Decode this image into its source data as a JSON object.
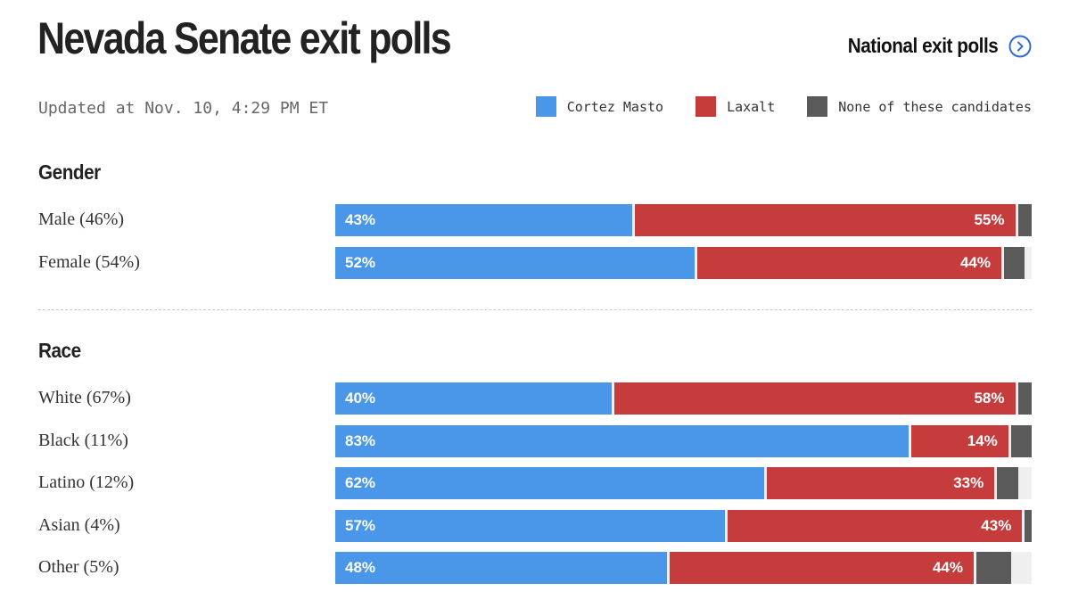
{
  "header": {
    "title": "Nevada Senate exit polls",
    "national_link": "National exit polls",
    "updated": "Updated at Nov. 10, 4:29 PM ET"
  },
  "colors": {
    "cortez_masto": "#4a97ea",
    "laxalt": "#c63c3c",
    "none": "#5a5a5a",
    "link": "#2f6bd8"
  },
  "legend": [
    {
      "label": "Cortez Masto",
      "color": "#4a97ea"
    },
    {
      "label": "Laxalt",
      "color": "#c63c3c"
    },
    {
      "label": "None of these candidates",
      "color": "#5a5a5a"
    }
  ],
  "chart_data": {
    "type": "bar",
    "orientation": "horizontal-stacked",
    "series": [
      {
        "name": "Cortez Masto",
        "color": "#4a97ea"
      },
      {
        "name": "Laxalt",
        "color": "#c63c3c"
      },
      {
        "name": "None of these candidates",
        "color": "#5a5a5a"
      }
    ],
    "sections": [
      {
        "title": "Gender",
        "rows": [
          {
            "label": "Male (46%)",
            "cortez_masto": 43,
            "laxalt": 55,
            "none": 2,
            "cortez_masto_label": "43%",
            "laxalt_label": "55%"
          },
          {
            "label": "Female (54%)",
            "cortez_masto": 52,
            "laxalt": 44,
            "none": 3,
            "cortez_masto_label": "52%",
            "laxalt_label": "44%"
          }
        ]
      },
      {
        "title": "Race",
        "rows": [
          {
            "label": "White (67%)",
            "cortez_masto": 40,
            "laxalt": 58,
            "none": 2,
            "cortez_masto_label": "40%",
            "laxalt_label": "58%"
          },
          {
            "label": "Black (11%)",
            "cortez_masto": 83,
            "laxalt": 14,
            "none": 3,
            "cortez_masto_label": "83%",
            "laxalt_label": "14%"
          },
          {
            "label": "Latino (12%)",
            "cortez_masto": 62,
            "laxalt": 33,
            "none": 3,
            "cortez_masto_label": "62%",
            "laxalt_label": "33%"
          },
          {
            "label": "Asian (4%)",
            "cortez_masto": 57,
            "laxalt": 43,
            "none": 1,
            "cortez_masto_label": "57%",
            "laxalt_label": "43%"
          },
          {
            "label": "Other (5%)",
            "cortez_masto": 48,
            "laxalt": 44,
            "none": 5,
            "cortez_masto_label": "48%",
            "laxalt_label": "44%"
          }
        ]
      }
    ]
  }
}
